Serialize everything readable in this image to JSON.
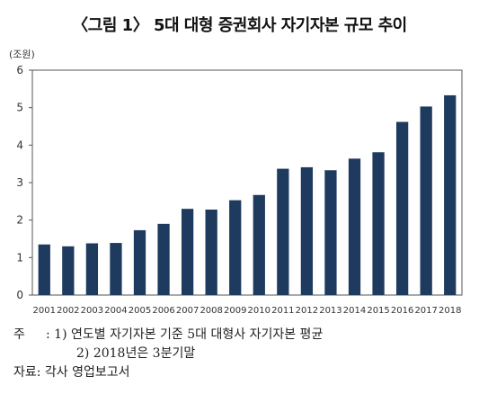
{
  "title": "〈그림 1〉 5대 대형 증권회사 자기자본 규모 추이",
  "unit_label": "(조원)",
  "chart_data": {
    "type": "bar",
    "categories": [
      "2001",
      "2002",
      "2003",
      "2004",
      "2005",
      "2006",
      "2007",
      "2008",
      "2009",
      "2010",
      "2011",
      "2012",
      "2013",
      "2014",
      "2015",
      "2016",
      "2017",
      "2018"
    ],
    "values": [
      1.35,
      1.3,
      1.38,
      1.39,
      1.73,
      1.9,
      2.3,
      2.28,
      2.53,
      2.67,
      3.37,
      3.41,
      3.33,
      3.64,
      3.81,
      4.62,
      5.03,
      5.33
    ],
    "yticks": [
      "0",
      "1",
      "2",
      "3",
      "4",
      "5",
      "6"
    ],
    "ylim": [
      0,
      6
    ],
    "bar_color": "#1f3a5f",
    "grid": false,
    "xlabel": "",
    "ylabel": "(조원)"
  },
  "notes": {
    "prefix": "주",
    "colon": ":",
    "line1": "1) 연도별 자기자본 기준 5대 대형사 자기자본 평균",
    "line2": "2) 2018년은 3분기말",
    "source": "자료: 각사 영업보고서"
  }
}
